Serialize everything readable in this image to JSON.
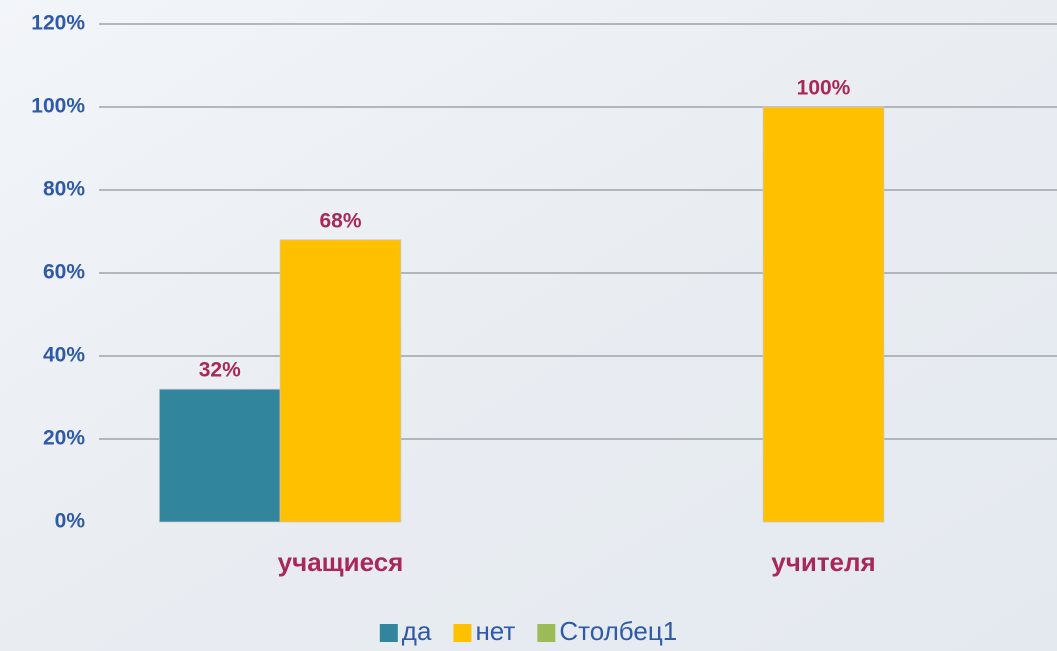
{
  "chart_data": {
    "type": "bar",
    "categories": [
      "учащиеся",
      "учителя"
    ],
    "series": [
      {
        "name": "да",
        "color": "#31859c",
        "values": [
          32,
          null
        ],
        "value_labels": [
          "32%",
          null
        ]
      },
      {
        "name": "нет",
        "color": "#ffc000",
        "values": [
          68,
          100
        ],
        "value_labels": [
          "68%",
          "100%"
        ]
      },
      {
        "name": "Столбец1",
        "color": "#9bbb59",
        "values": [
          null,
          null
        ],
        "value_labels": [
          null,
          null
        ]
      }
    ],
    "ylim": [
      0,
      120
    ],
    "yticks": [
      {
        "value": 0,
        "label": "0%"
      },
      {
        "value": 20,
        "label": "20%"
      },
      {
        "value": 40,
        "label": "40%"
      },
      {
        "value": 60,
        "label": "60%"
      },
      {
        "value": 80,
        "label": "80%"
      },
      {
        "value": 100,
        "label": "100%"
      },
      {
        "value": 120,
        "label": "120%"
      }
    ],
    "grid": true
  }
}
